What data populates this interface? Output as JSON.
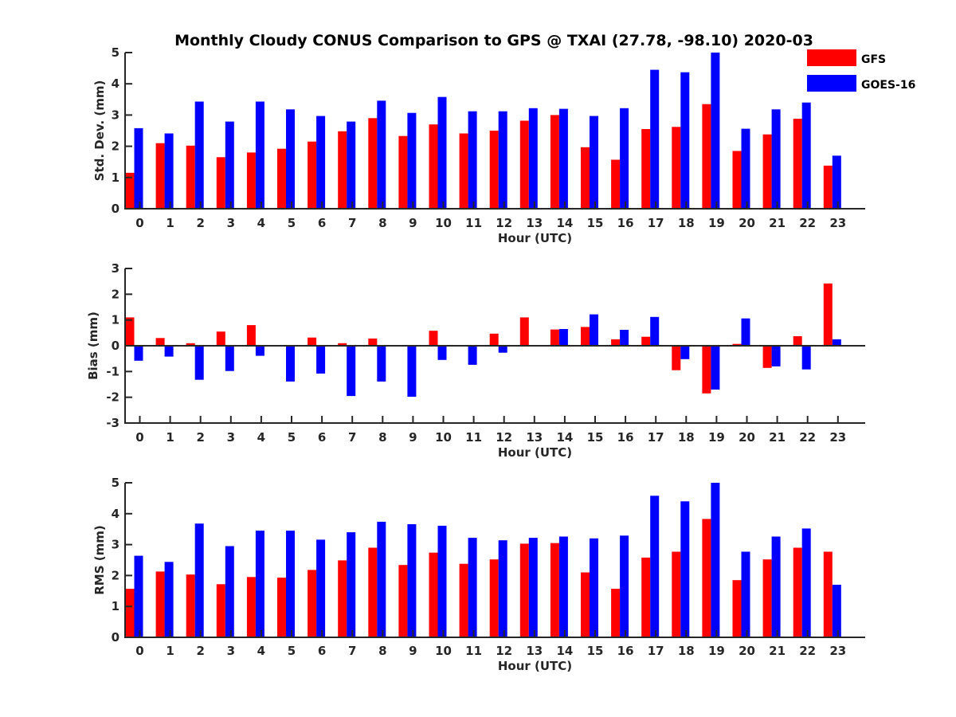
{
  "figure_title": "Monthly Cloudy CONUS Comparison to GPS @ TXAI (27.78, -98.10) 2020-03",
  "legend": [
    {
      "label": "GFS",
      "color": "#ff0000"
    },
    {
      "label": "GOES-16",
      "color": "#0000ff"
    }
  ],
  "chart_data": [
    {
      "type": "bar",
      "title": "Monthly Cloudy CONUS Comparison to GPS @ TXAI (27.78, -98.10) 2020-03",
      "xlabel": "Hour (UTC)",
      "ylabel": "Std. Dev. (mm)",
      "ylim": [
        0,
        5
      ],
      "yticks": [
        0,
        1,
        2,
        3,
        4,
        5
      ],
      "categories": [
        "0",
        "1",
        "2",
        "3",
        "4",
        "5",
        "6",
        "7",
        "8",
        "9",
        "10",
        "11",
        "12",
        "13",
        "14",
        "15",
        "16",
        "17",
        "18",
        "19",
        "20",
        "21",
        "22",
        "23"
      ],
      "legend_position": "top-right",
      "grid": false,
      "series": [
        {
          "name": "GFS",
          "color": "#ff0000",
          "values": [
            1.15,
            2.1,
            2.02,
            1.65,
            1.8,
            1.92,
            2.15,
            2.48,
            2.9,
            2.33,
            2.7,
            2.41,
            2.5,
            2.82,
            3.0,
            1.97,
            1.57,
            2.55,
            2.62,
            3.35,
            1.85,
            2.38,
            2.88,
            1.38
          ]
        },
        {
          "name": "GOES-16",
          "color": "#0000ff",
          "values": [
            2.58,
            2.41,
            3.43,
            2.79,
            3.43,
            3.18,
            2.97,
            2.79,
            3.46,
            3.07,
            3.58,
            3.12,
            3.12,
            3.22,
            3.2,
            2.97,
            3.22,
            4.45,
            4.37,
            5.0,
            2.56,
            3.18,
            3.4,
            1.7
          ]
        }
      ]
    },
    {
      "type": "bar",
      "title": "",
      "xlabel": "Hour (UTC)",
      "ylabel": "Bias (mm)",
      "ylim": [
        -3,
        3
      ],
      "yticks": [
        -3,
        -2,
        -1,
        0,
        1,
        2,
        3
      ],
      "categories": [
        "0",
        "1",
        "2",
        "3",
        "4",
        "5",
        "6",
        "7",
        "8",
        "9",
        "10",
        "11",
        "12",
        "13",
        "14",
        "15",
        "16",
        "17",
        "18",
        "19",
        "20",
        "21",
        "22",
        "23"
      ],
      "grid": false,
      "series": [
        {
          "name": "GFS",
          "color": "#ff0000",
          "values": [
            1.1,
            0.3,
            0.1,
            0.55,
            0.8,
            0.03,
            0.32,
            0.1,
            0.28,
            0.0,
            0.58,
            0.0,
            0.47,
            1.1,
            0.63,
            0.73,
            0.25,
            0.35,
            -0.95,
            -1.85,
            0.07,
            -0.86,
            0.37,
            2.42
          ]
        },
        {
          "name": "GOES-16",
          "color": "#0000ff",
          "values": [
            -0.58,
            -0.42,
            -1.32,
            -0.98,
            -0.39,
            -1.39,
            -1.08,
            -1.95,
            -1.39,
            -1.98,
            -0.55,
            -0.74,
            -0.27,
            0.0,
            0.65,
            1.22,
            0.62,
            1.12,
            -0.52,
            -1.7,
            1.06,
            -0.8,
            -0.92,
            0.25
          ]
        }
      ]
    },
    {
      "type": "bar",
      "title": "",
      "xlabel": "Hour (UTC)",
      "ylabel": "RMS (mm)",
      "ylim": [
        0,
        5
      ],
      "yticks": [
        0,
        1,
        2,
        3,
        4,
        5
      ],
      "categories": [
        "0",
        "1",
        "2",
        "3",
        "4",
        "5",
        "6",
        "7",
        "8",
        "9",
        "10",
        "11",
        "12",
        "13",
        "14",
        "15",
        "16",
        "17",
        "18",
        "19",
        "20",
        "21",
        "22",
        "23"
      ],
      "grid": false,
      "series": [
        {
          "name": "GFS",
          "color": "#ff0000",
          "values": [
            1.57,
            2.13,
            2.03,
            1.72,
            1.95,
            1.93,
            2.18,
            2.49,
            2.9,
            2.34,
            2.74,
            2.38,
            2.52,
            3.03,
            3.05,
            2.1,
            1.57,
            2.58,
            2.77,
            3.83,
            1.85,
            2.52,
            2.9,
            2.77
          ]
        },
        {
          "name": "GOES-16",
          "color": "#0000ff",
          "values": [
            2.64,
            2.44,
            3.68,
            2.95,
            3.45,
            3.45,
            3.16,
            3.4,
            3.74,
            3.66,
            3.61,
            3.22,
            3.14,
            3.22,
            3.26,
            3.2,
            3.29,
            4.58,
            4.4,
            5.0,
            2.77,
            3.26,
            3.52,
            1.7
          ]
        }
      ]
    }
  ]
}
